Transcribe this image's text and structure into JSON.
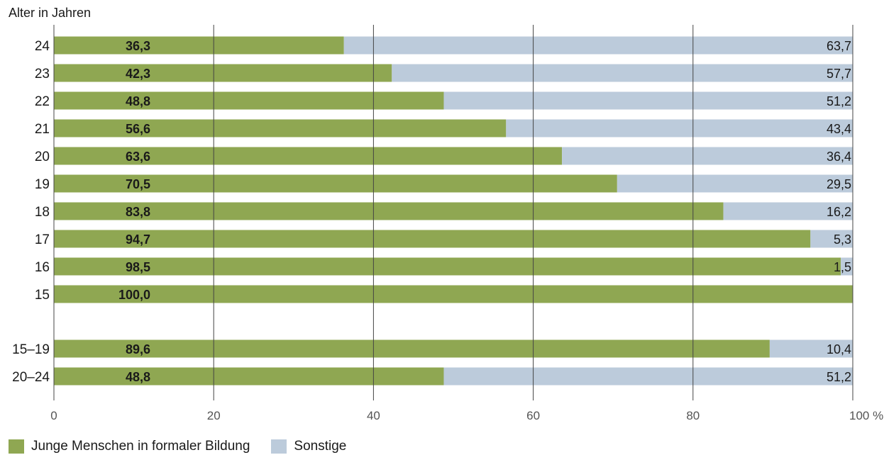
{
  "chart_data": {
    "type": "bar",
    "orientation": "horizontal",
    "stacked": true,
    "ylabel": "Alter in Jahren",
    "x_unit": "%",
    "xlim": [
      0,
      100
    ],
    "xticks": [
      "0",
      "20",
      "40",
      "60",
      "80",
      "100 %"
    ],
    "categories": [
      "24",
      "23",
      "22",
      "21",
      "20",
      "19",
      "18",
      "17",
      "16",
      "15",
      "15–19",
      "20–24"
    ],
    "value_labels": {
      "green": [
        "36,3",
        "42,3",
        "48,8",
        "56,6",
        "63,6",
        "70,5",
        "83,8",
        "94,7",
        "98,5",
        "100,0",
        "89,6",
        "48,8"
      ],
      "blue": [
        "63,7",
        "57,7",
        "51,2",
        "43,4",
        "36,4",
        "29,5",
        "16,2",
        "5,3",
        "1,5",
        "",
        "10,4",
        "51,2"
      ]
    },
    "series": [
      {
        "name": "Junge Menschen in formaler Bildung",
        "color": "#8fa752",
        "values": [
          36.3,
          42.3,
          48.8,
          56.6,
          63.6,
          70.5,
          83.8,
          94.7,
          98.5,
          100.0,
          89.6,
          48.8
        ]
      },
      {
        "name": "Sonstige",
        "color": "#bccbdb",
        "values": [
          63.7,
          57.7,
          51.2,
          43.4,
          36.4,
          29.5,
          16.2,
          5.3,
          1.5,
          0,
          10.4,
          51.2
        ]
      }
    ],
    "grid": true,
    "legend_position": "bottom-left"
  }
}
